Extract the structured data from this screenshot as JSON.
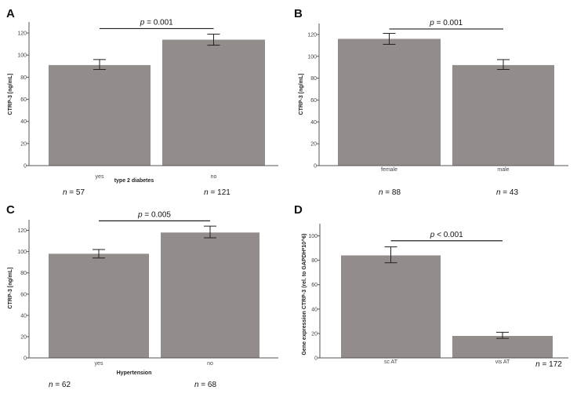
{
  "colors": {
    "bar": "#928d8b",
    "axis": "#555555",
    "line": "#222222"
  },
  "chart_data": [
    {
      "type": "bar",
      "panel": "A",
      "categories": [
        "yes",
        "no"
      ],
      "values": [
        91,
        114
      ],
      "errors": [
        [
          87,
          96
        ],
        [
          109,
          119
        ]
      ],
      "ylabel": "CTRP-3 [ng/mL]",
      "xlabel": "type 2 diabetes",
      "ylim": [
        0,
        130
      ],
      "yticks": [
        0,
        20,
        40,
        60,
        80,
        100,
        120
      ],
      "sig_prefix": "p",
      "sig_text": " = 0.001",
      "sig_y": 124,
      "n_labels": [
        {
          "prefix": "n",
          "value": " = 57"
        },
        {
          "prefix": "n",
          "value": " = 121"
        }
      ]
    },
    {
      "type": "bar",
      "panel": "B",
      "categories": [
        "female",
        "male"
      ],
      "values": [
        116,
        92
      ],
      "errors": [
        [
          111,
          121
        ],
        [
          88,
          97
        ]
      ],
      "ylabel": "CTRP-3 [ng/mL]",
      "xlabel": "",
      "ylim": [
        0,
        130
      ],
      "yticks": [
        0,
        20,
        40,
        60,
        80,
        100,
        120
      ],
      "sig_prefix": "p",
      "sig_text": " = 0.001",
      "sig_y": 125,
      "n_labels": [
        {
          "prefix": "n",
          "value": " = 88"
        },
        {
          "prefix": "n",
          "value": " = 43"
        }
      ]
    },
    {
      "type": "bar",
      "panel": "C",
      "categories": [
        "yes",
        "no"
      ],
      "values": [
        98,
        118
      ],
      "errors": [
        [
          94,
          102
        ],
        [
          113,
          124
        ]
      ],
      "ylabel": "CTRP-3 [ng/mL]",
      "xlabel": "Hypertension",
      "ylim": [
        0,
        130
      ],
      "yticks": [
        0,
        20,
        40,
        60,
        80,
        100,
        120
      ],
      "sig_prefix": "p",
      "sig_text": " = 0.005",
      "sig_y": 129,
      "n_labels": [
        {
          "prefix": "n",
          "value": " = 62"
        },
        {
          "prefix": "n",
          "value": " = 68"
        }
      ]
    },
    {
      "type": "bar",
      "panel": "D",
      "categories": [
        "sc AT",
        "vis AT"
      ],
      "values": [
        84,
        18
      ],
      "errors": [
        [
          78,
          91
        ],
        [
          16,
          21
        ]
      ],
      "ylabel": "Gene expression CTRP-3 (rel. to GAPDH*10^6)",
      "xlabel": "",
      "ylim": [
        0,
        110
      ],
      "yticks": [
        0,
        20,
        40,
        60,
        80,
        100
      ],
      "sig_prefix": "p",
      "sig_text": " < 0.001",
      "sig_y": 96,
      "n_labels": [
        {
          "prefix": "n",
          "value": " = 172"
        }
      ]
    }
  ]
}
